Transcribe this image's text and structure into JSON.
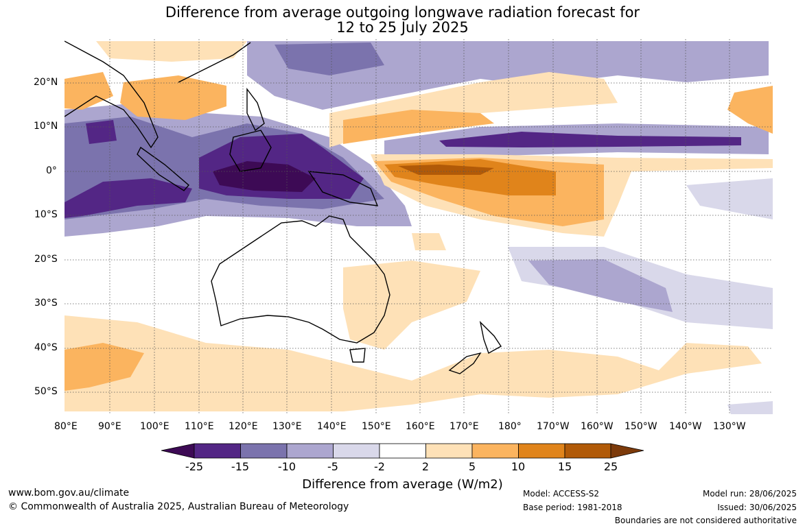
{
  "title": {
    "line1": "Difference from average outgoing longwave radiation forecast for",
    "line2": "12 to 25 July 2025"
  },
  "axes": {
    "lon_labels": [
      "80°E",
      "90°E",
      "100°E",
      "110°E",
      "120°E",
      "130°E",
      "140°E",
      "150°E",
      "160°E",
      "170°E",
      "180°",
      "170°W",
      "160°W",
      "150°W",
      "140°W",
      "130°W"
    ],
    "lat_labels": [
      "20°N",
      "10°N",
      "0°",
      "10°S",
      "20°S",
      "30°S",
      "40°S",
      "50°S"
    ],
    "lon_range": [
      80,
      236
    ],
    "lat_range": [
      -55,
      30
    ]
  },
  "colorbar": {
    "title": "Difference from average (W/m2)",
    "ticks": [
      "-25",
      "-15",
      "-10",
      "-5",
      "-2",
      "2",
      "5",
      "10",
      "15",
      "25"
    ],
    "colors": [
      "#3d0a55",
      "#532685",
      "#7b73ad",
      "#aca6cf",
      "#d9d8ea",
      "#ffffff",
      "#fee1b7",
      "#fbb45f",
      "#e0841b",
      "#b15a08",
      "#7c3a0a"
    ]
  },
  "footer": {
    "url": "www.bom.gov.au/climate",
    "copyright": "© Commonwealth of Australia 2025, Australian Bureau of Meteorology",
    "model": "Model: ACCESS-S2",
    "base_period": "Base period: 1981-2018",
    "model_run": "Model run: 28/06/2025",
    "issued": "Issued: 30/06/2025",
    "disclaimer": "Boundaries are not considered authoritative"
  }
}
